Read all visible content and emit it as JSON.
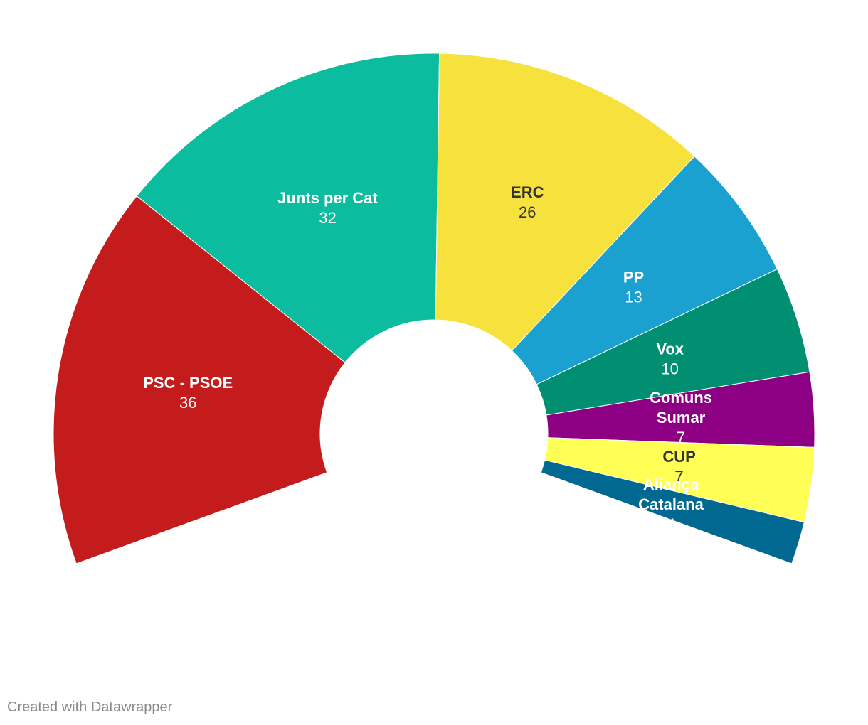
{
  "chart_data": {
    "type": "pie",
    "subtype": "half-donut parliament chart",
    "total_seats": 135,
    "series": [
      {
        "name": "PSC - PSOE",
        "label_lines": [
          "PSC - PSOE"
        ],
        "value": 36,
        "color": "#c41c1c",
        "text_color": "#ffffff"
      },
      {
        "name": "Junts per Cat",
        "label_lines": [
          "Junts per Cat"
        ],
        "value": 32,
        "color": "#0bbc9f",
        "text_color": "#ffffff"
      },
      {
        "name": "ERC",
        "label_lines": [
          "ERC"
        ],
        "value": 26,
        "color": "#f6e13d",
        "text_color": "#333333"
      },
      {
        "name": "PP",
        "label_lines": [
          "PP"
        ],
        "value": 13,
        "color": "#1aa1cf",
        "text_color": "#ffffff"
      },
      {
        "name": "Vox",
        "label_lines": [
          "Vox"
        ],
        "value": 10,
        "color": "#018f71",
        "text_color": "#ffffff"
      },
      {
        "name": "Comuns Sumar",
        "label_lines": [
          "Comuns",
          "Sumar"
        ],
        "value": 7,
        "color": "#8e0083",
        "text_color": "#ffffff"
      },
      {
        "name": "CUP",
        "label_lines": [
          "CUP"
        ],
        "value": 7,
        "color": "#ffff55",
        "text_color": "#333333"
      },
      {
        "name": "Aliança Catalana",
        "label_lines": [
          "Aliança",
          "Catalana"
        ],
        "value": 4,
        "color": "#006891",
        "text_color": "#ffffff"
      }
    ]
  },
  "footer": {
    "credit": "Created with Datawrapper"
  }
}
